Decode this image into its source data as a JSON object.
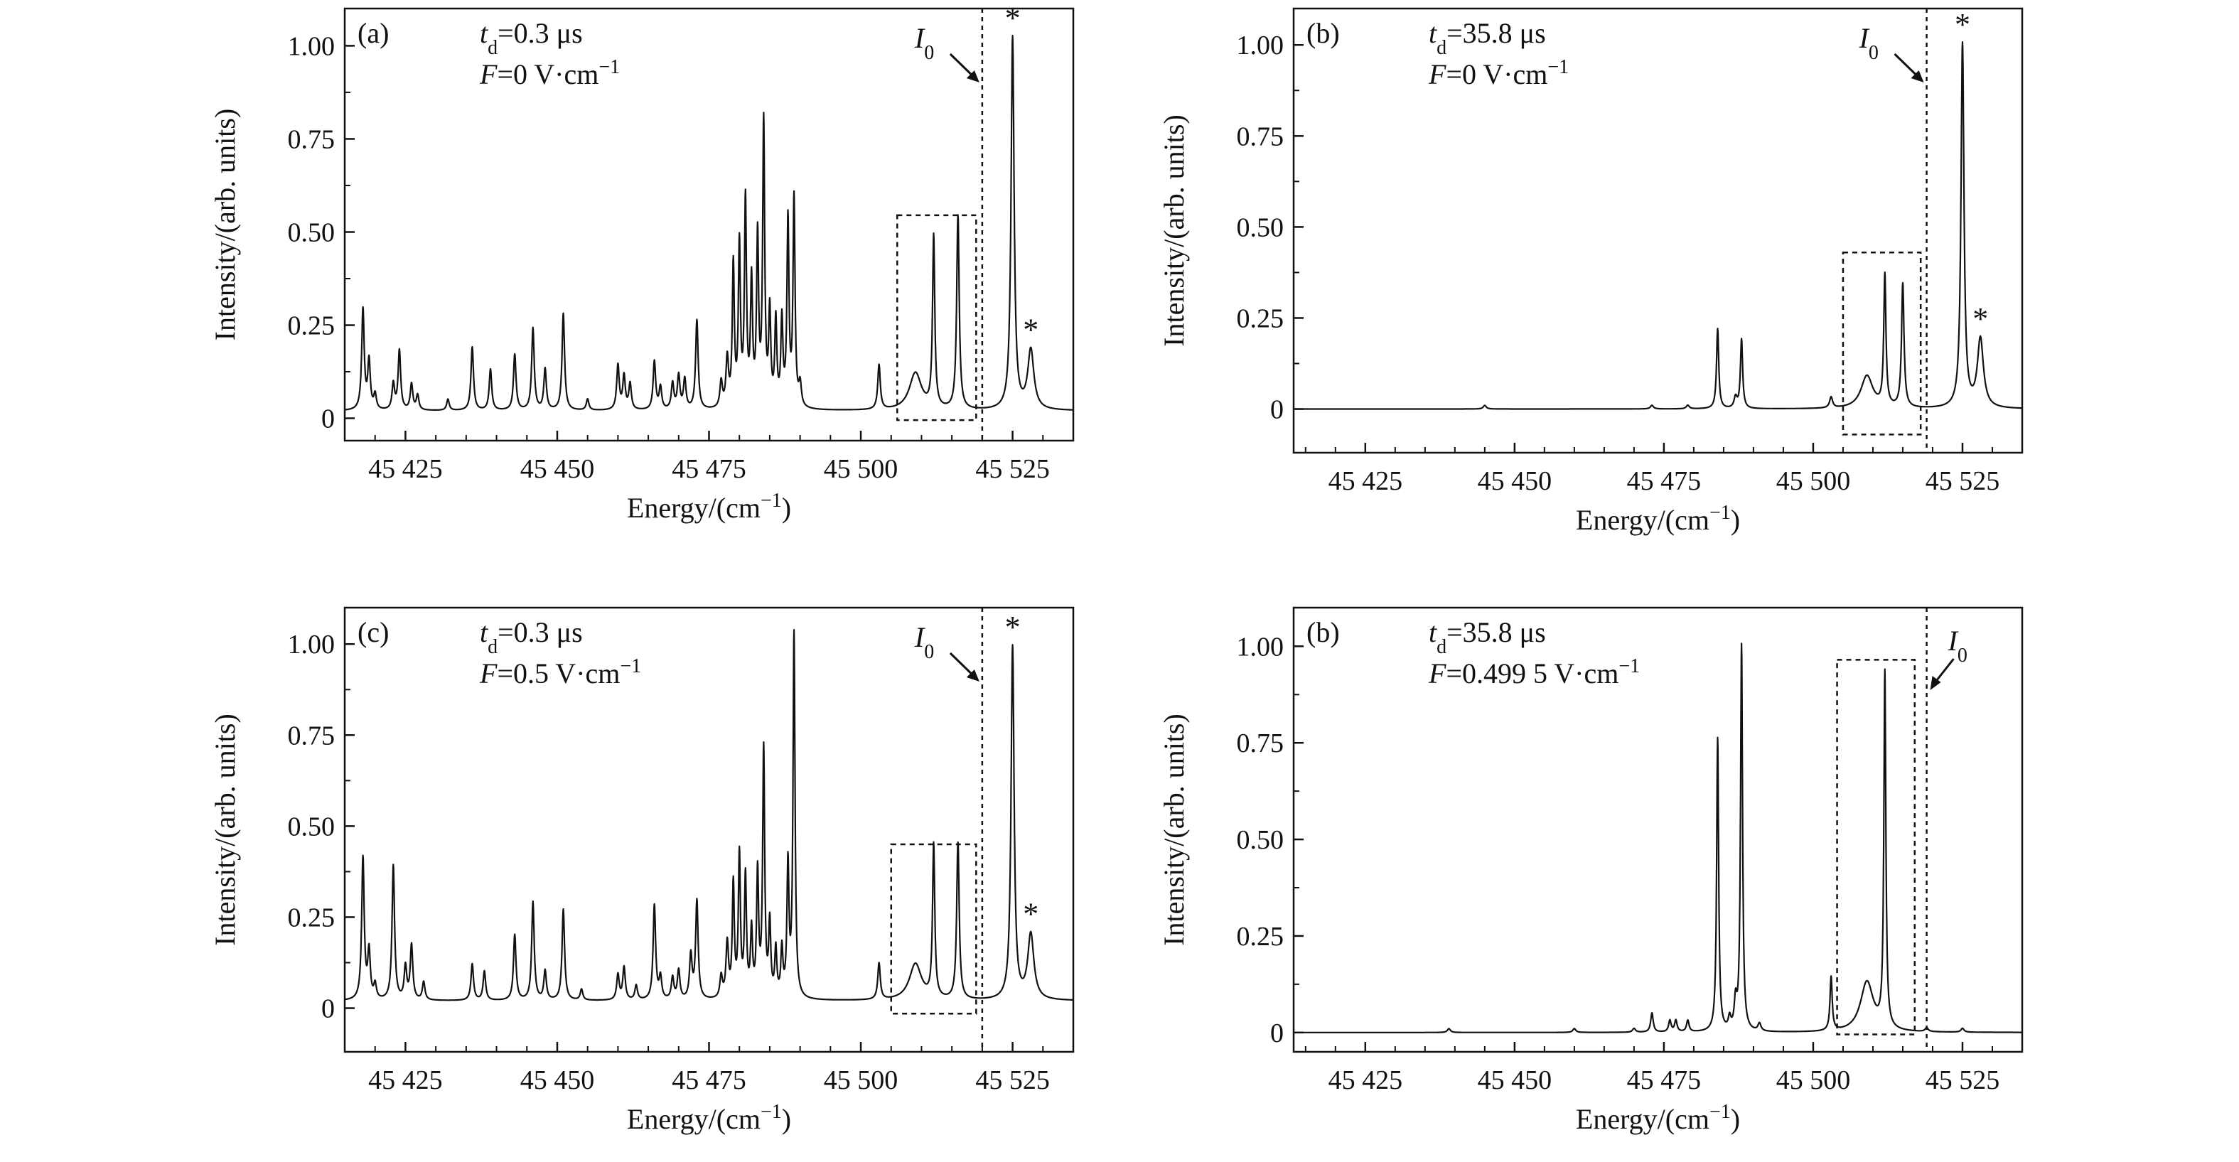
{
  "chart_data": [
    {
      "type": "line",
      "panel_label": "(a)",
      "annotations": [
        {
          "sym": "t",
          "sub": "d",
          "text": "=0.3 μs"
        },
        {
          "sym": "F",
          "text": "=0 V·cm",
          "sup": "−1"
        }
      ],
      "xlabel": "Energy/(cm",
      "xlabel_sup": "−1",
      "xlabel_tail": ")",
      "ylabel": "Intensity/(arb. units)",
      "xlim": [
        45415,
        45535
      ],
      "ylim": [
        -0.06,
        1.1
      ],
      "x_ticks": [
        45425,
        45450,
        45475,
        45500,
        45525
      ],
      "x_tick_labels": [
        "45 425",
        "45 450",
        "45 475",
        "45 500",
        "45 525"
      ],
      "y_ticks": [
        0,
        0.25,
        0.5,
        0.75,
        1.0
      ],
      "y_tick_labels": [
        "0",
        "0.25",
        "0.50",
        "0.75",
        "1.00"
      ],
      "I0": {
        "label": "I",
        "sub": "0",
        "x": 45520
      },
      "star_x": [
        45525,
        45528
      ],
      "box": {
        "x0": 45506,
        "x1": 45519,
        "y0": -0.005,
        "y1": 0.545
      },
      "series": [
        {
          "baseline": 0.02,
          "peaks": [
            [
              45418,
              0.27,
              0.25
            ],
            [
              45419,
              0.13,
              0.25
            ],
            [
              45420,
              0.04,
              0.25
            ],
            [
              45423,
              0.07,
              0.25
            ],
            [
              45424,
              0.16,
              0.25
            ],
            [
              45426,
              0.07,
              0.25
            ],
            [
              45427,
              0.04,
              0.25
            ],
            [
              45432,
              0.03,
              0.25
            ],
            [
              45436,
              0.17,
              0.25
            ],
            [
              45439,
              0.11,
              0.25
            ],
            [
              45443,
              0.15,
              0.25
            ],
            [
              45446,
              0.22,
              0.25
            ],
            [
              45448,
              0.11,
              0.25
            ],
            [
              45451,
              0.26,
              0.25
            ],
            [
              45455,
              0.03,
              0.25
            ],
            [
              45460,
              0.12,
              0.25
            ],
            [
              45461,
              0.09,
              0.25
            ],
            [
              45462,
              0.07,
              0.25
            ],
            [
              45466,
              0.13,
              0.25
            ],
            [
              45467,
              0.06,
              0.25
            ],
            [
              45469,
              0.07,
              0.25
            ],
            [
              45470,
              0.09,
              0.25
            ],
            [
              45471,
              0.08,
              0.25
            ],
            [
              45473,
              0.24,
              0.25
            ],
            [
              45477,
              0.07,
              0.25
            ],
            [
              45478,
              0.13,
              0.25
            ],
            [
              45479,
              0.38,
              0.2
            ],
            [
              45480,
              0.43,
              0.2
            ],
            [
              45481,
              0.55,
              0.2
            ],
            [
              45482,
              0.33,
              0.2
            ],
            [
              45483,
              0.45,
              0.2
            ],
            [
              45484,
              0.76,
              0.2
            ],
            [
              45485,
              0.25,
              0.2
            ],
            [
              45486,
              0.23,
              0.2
            ],
            [
              45487,
              0.23,
              0.2
            ],
            [
              45488,
              0.5,
              0.2
            ],
            [
              45489,
              0.56,
              0.2
            ],
            [
              45490,
              0.06,
              0.25
            ],
            [
              45503,
              0.12,
              0.25
            ],
            [
              45509,
              0.1,
              1.2
            ],
            [
              45512,
              0.46,
              0.22
            ],
            [
              45516,
              0.52,
              0.25
            ],
            [
              45525,
              1.0,
              0.3
            ],
            [
              45528,
              0.16,
              0.6
            ]
          ]
        }
      ]
    },
    {
      "type": "line",
      "panel_label": "(b)",
      "annotations": [
        {
          "sym": "t",
          "sub": "d",
          "text": "=35.8 μs"
        },
        {
          "sym": "F",
          "text": "=0 V·cm",
          "sup": "−1"
        }
      ],
      "xlabel": "Energy/(cm",
      "xlabel_sup": "−1",
      "xlabel_tail": ")",
      "ylabel": "Intensity/(arb. units)",
      "xlim": [
        45413,
        45535
      ],
      "ylim": [
        -0.12,
        1.1
      ],
      "x_ticks": [
        45425,
        45450,
        45475,
        45500,
        45525
      ],
      "x_tick_labels": [
        "45 425",
        "45 450",
        "45 475",
        "45 500",
        "45 525"
      ],
      "y_ticks": [
        0,
        0.25,
        0.5,
        0.75,
        1.0
      ],
      "y_tick_labels": [
        "0",
        "0.25",
        "0.50",
        "0.75",
        "1.00"
      ],
      "I0": {
        "label": "I",
        "sub": "0",
        "x": 45519
      },
      "star_x": [
        45525,
        45528
      ],
      "box": {
        "x0": 45505,
        "x1": 45518,
        "y0": -0.07,
        "y1": 0.43
      },
      "series": [
        {
          "baseline": 0.0,
          "peaks": [
            [
              45445,
              0.01,
              0.3
            ],
            [
              45473,
              0.01,
              0.3
            ],
            [
              45479,
              0.01,
              0.3
            ],
            [
              45484,
              0.22,
              0.22
            ],
            [
              45487,
              0.03,
              0.3
            ],
            [
              45488,
              0.19,
              0.22
            ],
            [
              45503,
              0.03,
              0.3
            ],
            [
              45509,
              0.09,
              1.2
            ],
            [
              45512,
              0.36,
              0.22
            ],
            [
              45515,
              0.34,
              0.25
            ],
            [
              45525,
              1.0,
              0.3
            ],
            [
              45528,
              0.19,
              0.6
            ]
          ]
        }
      ]
    },
    {
      "type": "line",
      "panel_label": "(c)",
      "annotations": [
        {
          "sym": "t",
          "sub": "d",
          "text": "=0.3 μs"
        },
        {
          "sym": "F",
          "text": "=0.5 V·cm",
          "sup": "−1"
        }
      ],
      "xlabel": "Energy/(cm",
      "xlabel_sup": "−1",
      "xlabel_tail": ")",
      "ylabel": "Intensity/(arb. units)",
      "xlim": [
        45415,
        45535
      ],
      "ylim": [
        -0.12,
        1.1
      ],
      "x_ticks": [
        45425,
        45450,
        45475,
        45500,
        45525
      ],
      "x_tick_labels": [
        "45 425",
        "45 450",
        "45 475",
        "45 500",
        "45 525"
      ],
      "y_ticks": [
        0,
        0.25,
        0.5,
        0.75,
        1.0
      ],
      "y_tick_labels": [
        "0",
        "0.25",
        "0.50",
        "0.75",
        "1.00"
      ],
      "I0": {
        "label": "I",
        "sub": "0",
        "x": 45520
      },
      "star_x": [
        45525,
        45528
      ],
      "box": {
        "x0": 45505,
        "x1": 45519,
        "y0": -0.015,
        "y1": 0.45
      },
      "series": [
        {
          "baseline": 0.02,
          "peaks": [
            [
              45418,
              0.39,
              0.25
            ],
            [
              45419,
              0.13,
              0.25
            ],
            [
              45420,
              0.04,
              0.25
            ],
            [
              45423,
              0.37,
              0.25
            ],
            [
              45425,
              0.09,
              0.25
            ],
            [
              45426,
              0.15,
              0.25
            ],
            [
              45428,
              0.05,
              0.25
            ],
            [
              45436,
              0.1,
              0.25
            ],
            [
              45438,
              0.08,
              0.25
            ],
            [
              45443,
              0.18,
              0.25
            ],
            [
              45446,
              0.27,
              0.25
            ],
            [
              45448,
              0.08,
              0.25
            ],
            [
              45451,
              0.25,
              0.25
            ],
            [
              45454,
              0.03,
              0.25
            ],
            [
              45460,
              0.07,
              0.25
            ],
            [
              45461,
              0.09,
              0.25
            ],
            [
              45463,
              0.04,
              0.25
            ],
            [
              45466,
              0.26,
              0.25
            ],
            [
              45467,
              0.06,
              0.25
            ],
            [
              45469,
              0.06,
              0.25
            ],
            [
              45470,
              0.08,
              0.25
            ],
            [
              45472,
              0.12,
              0.25
            ],
            [
              45473,
              0.27,
              0.25
            ],
            [
              45477,
              0.06,
              0.25
            ],
            [
              45478,
              0.15,
              0.25
            ],
            [
              45479,
              0.31,
              0.2
            ],
            [
              45480,
              0.39,
              0.2
            ],
            [
              45481,
              0.33,
              0.2
            ],
            [
              45482,
              0.18,
              0.2
            ],
            [
              45483,
              0.34,
              0.2
            ],
            [
              45484,
              0.68,
              0.2
            ],
            [
              45485,
              0.2,
              0.2
            ],
            [
              45486,
              0.13,
              0.2
            ],
            [
              45487,
              0.13,
              0.2
            ],
            [
              45488,
              0.36,
              0.2
            ],
            [
              45489,
              1.0,
              0.2
            ],
            [
              45503,
              0.1,
              0.25
            ],
            [
              45509,
              0.1,
              1.2
            ],
            [
              45512,
              0.42,
              0.22
            ],
            [
              45516,
              0.43,
              0.25
            ],
            [
              45525,
              0.97,
              0.3
            ],
            [
              45528,
              0.18,
              0.6
            ]
          ]
        }
      ]
    },
    {
      "type": "line",
      "panel_label": "(b)",
      "annotations": [
        {
          "sym": "t",
          "sub": "d",
          "text": "=35.8 μs"
        },
        {
          "sym": "F",
          "text": "=0.499 5 V·cm",
          "sup": "−1"
        }
      ],
      "xlabel": "Energy/(cm",
      "xlabel_sup": "−1",
      "xlabel_tail": ")",
      "ylabel": "Intensity/(arb. units)",
      "xlim": [
        45413,
        45535
      ],
      "ylim": [
        -0.05,
        1.1
      ],
      "x_ticks": [
        45425,
        45450,
        45475,
        45500,
        45525
      ],
      "x_tick_labels": [
        "45 425",
        "45 450",
        "45 475",
        "45 500",
        "45 525"
      ],
      "y_ticks": [
        0,
        0.25,
        0.5,
        0.75,
        1.0
      ],
      "y_tick_labels": [
        "0",
        "0.25",
        "0.50",
        "0.75",
        "1.00"
      ],
      "I0": {
        "label": "I",
        "sub": "0",
        "x": 45519
      },
      "star_x": [],
      "box": {
        "x0": 45504,
        "x1": 45517,
        "y0": -0.005,
        "y1": 0.965
      },
      "series": [
        {
          "baseline": 0.0,
          "peaks": [
            [
              45439,
              0.01,
              0.3
            ],
            [
              45460,
              0.01,
              0.3
            ],
            [
              45470,
              0.01,
              0.3
            ],
            [
              45473,
              0.05,
              0.25
            ],
            [
              45476,
              0.03,
              0.25
            ],
            [
              45477,
              0.03,
              0.25
            ],
            [
              45479,
              0.03,
              0.25
            ],
            [
              45484,
              0.76,
              0.2
            ],
            [
              45486,
              0.03,
              0.25
            ],
            [
              45487,
              0.07,
              0.25
            ],
            [
              45488,
              1.0,
              0.2
            ],
            [
              45491,
              0.02,
              0.3
            ],
            [
              45503,
              0.14,
              0.22
            ],
            [
              45509,
              0.13,
              1.3
            ],
            [
              45512,
              0.92,
              0.2
            ],
            [
              45519,
              0.01,
              0.3
            ],
            [
              45525,
              0.01,
              0.3
            ]
          ]
        }
      ]
    }
  ]
}
